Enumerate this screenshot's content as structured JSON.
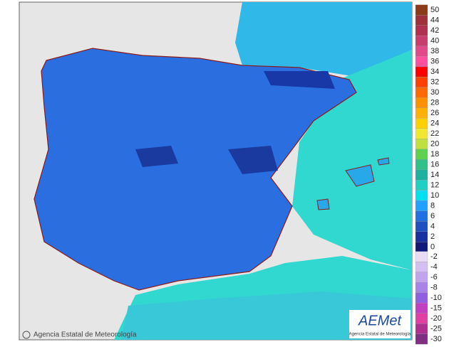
{
  "credit": "Agencia Estatal de Meteorología",
  "logo": {
    "brand": "AEMet",
    "subtitle": "Agencia Estatal de Meteorología"
  },
  "legend": {
    "levels": [
      {
        "label": "50",
        "color": "#8b3a1a"
      },
      {
        "label": "44",
        "color": "#a0303a"
      },
      {
        "label": "42",
        "color": "#b03050"
      },
      {
        "label": "40",
        "color": "#c83c6e"
      },
      {
        "label": "38",
        "color": "#e04a8a"
      },
      {
        "label": "36",
        "color": "#ff50a0"
      },
      {
        "label": "34",
        "color": "#ff0000"
      },
      {
        "label": "32",
        "color": "#ff4000"
      },
      {
        "label": "30",
        "color": "#ff6a00"
      },
      {
        "label": "28",
        "color": "#ff9000"
      },
      {
        "label": "26",
        "color": "#ffb000"
      },
      {
        "label": "24",
        "color": "#ffd000"
      },
      {
        "label": "22",
        "color": "#f0e830"
      },
      {
        "label": "20",
        "color": "#c0e040"
      },
      {
        "label": "18",
        "color": "#60d050"
      },
      {
        "label": "16",
        "color": "#30c088"
      },
      {
        "label": "14",
        "color": "#20b0a0"
      },
      {
        "label": "12",
        "color": "#20d0c0"
      },
      {
        "label": "10",
        "color": "#00e0f0"
      },
      {
        "label": "8",
        "color": "#20a0ff"
      },
      {
        "label": "6",
        "color": "#2070e0"
      },
      {
        "label": "4",
        "color": "#2050c0"
      },
      {
        "label": "2",
        "color": "#1830a0"
      },
      {
        "label": "0",
        "color": "#101878"
      }
    ],
    "negative_levels": [
      {
        "label": "-2",
        "color": "#e8dcf4"
      },
      {
        "label": "-4",
        "color": "#d4c0f0"
      },
      {
        "label": "-6",
        "color": "#c0a4ec"
      },
      {
        "label": "-8",
        "color": "#a884e8"
      },
      {
        "label": "-10",
        "color": "#9060e0"
      },
      {
        "label": "-15",
        "color": "#c040c0"
      },
      {
        "label": "-20",
        "color": "#e040a0"
      },
      {
        "label": "-25",
        "color": "#b03090"
      },
      {
        "label": "-30",
        "color": "#803080"
      }
    ]
  }
}
